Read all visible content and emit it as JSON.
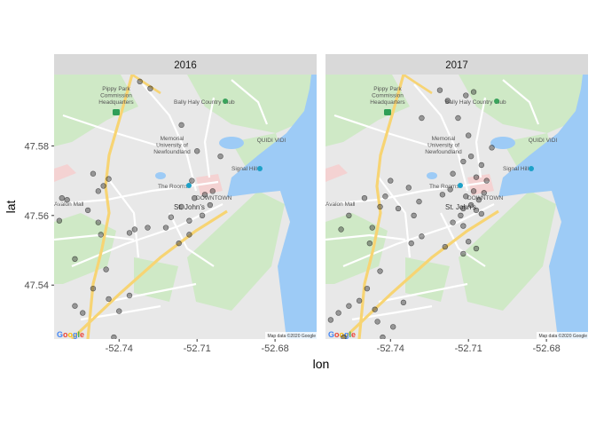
{
  "chart_data": {
    "type": "scatter",
    "xlabel": "lon",
    "ylabel": "lat",
    "xlim": [
      -52.765,
      -52.664
    ],
    "ylim": [
      47.5245,
      47.6005
    ],
    "x_ticks": [
      {
        "value": -52.74,
        "label": "-52.74"
      },
      {
        "value": -52.71,
        "label": "-52.71"
      },
      {
        "value": -52.68,
        "label": "-52.68"
      }
    ],
    "y_ticks": [
      {
        "value": 47.54,
        "label": "47.54"
      },
      {
        "value": 47.56,
        "label": "47.56"
      },
      {
        "value": 47.58,
        "label": "47.58"
      }
    ],
    "point_color": "#333333",
    "point_alpha": 0.45,
    "panels": [
      {
        "facet": "2016",
        "points": [
          [
            -52.732,
            47.5985
          ],
          [
            -52.728,
            47.5965
          ],
          [
            -52.716,
            47.586
          ],
          [
            -52.71,
            47.5785
          ],
          [
            -52.701,
            47.577
          ],
          [
            -52.712,
            47.57
          ],
          [
            -52.716,
            47.5625
          ],
          [
            -52.711,
            47.565
          ],
          [
            -52.707,
            47.566
          ],
          [
            -52.704,
            47.567
          ],
          [
            -52.705,
            47.563
          ],
          [
            -52.708,
            47.56
          ],
          [
            -52.713,
            47.5585
          ],
          [
            -52.72,
            47.5595
          ],
          [
            -52.722,
            47.5565
          ],
          [
            -52.717,
            47.552
          ],
          [
            -52.713,
            47.5545
          ],
          [
            -52.729,
            47.5565
          ],
          [
            -52.734,
            47.556
          ],
          [
            -52.748,
            47.567
          ],
          [
            -52.75,
            47.572
          ],
          [
            -52.744,
            47.5705
          ],
          [
            -52.746,
            47.5685
          ],
          [
            -52.762,
            47.565
          ],
          [
            -52.76,
            47.5645
          ],
          [
            -52.752,
            47.5615
          ],
          [
            -52.748,
            47.558
          ],
          [
            -52.763,
            47.5585
          ],
          [
            -52.757,
            47.5475
          ],
          [
            -52.747,
            47.5545
          ],
          [
            -52.745,
            47.5445
          ],
          [
            -52.744,
            47.536
          ],
          [
            -52.74,
            47.5325
          ],
          [
            -52.736,
            47.537
          ],
          [
            -52.75,
            47.539
          ],
          [
            -52.754,
            47.532
          ],
          [
            -52.757,
            47.534
          ],
          [
            -52.742,
            47.525
          ],
          [
            -52.736,
            47.555
          ]
        ]
      },
      {
        "facet": "2017",
        "points": [
          [
            -52.721,
            47.596
          ],
          [
            -52.718,
            47.593
          ],
          [
            -52.711,
            47.5945
          ],
          [
            -52.708,
            47.5955
          ],
          [
            -52.714,
            47.588
          ],
          [
            -52.71,
            47.583
          ],
          [
            -52.728,
            47.588
          ],
          [
            -52.701,
            47.5795
          ],
          [
            -52.709,
            47.577
          ],
          [
            -52.705,
            47.5745
          ],
          [
            -52.712,
            47.5755
          ],
          [
            -52.716,
            47.572
          ],
          [
            -52.707,
            47.571
          ],
          [
            -52.703,
            47.57
          ],
          [
            -52.704,
            47.5665
          ],
          [
            -52.708,
            47.567
          ],
          [
            -52.711,
            47.5655
          ],
          [
            -52.706,
            47.5645
          ],
          [
            -52.709,
            47.563
          ],
          [
            -52.712,
            47.562
          ],
          [
            -52.707,
            47.5615
          ],
          [
            -52.705,
            47.5605
          ],
          [
            -52.713,
            47.56
          ],
          [
            -52.716,
            47.558
          ],
          [
            -52.712,
            47.557
          ],
          [
            -52.717,
            47.5675
          ],
          [
            -52.72,
            47.566
          ],
          [
            -52.71,
            47.5525
          ],
          [
            -52.707,
            47.5505
          ],
          [
            -52.712,
            47.549
          ],
          [
            -52.729,
            47.564
          ],
          [
            -52.733,
            47.568
          ],
          [
            -52.74,
            47.57
          ],
          [
            -52.742,
            47.5655
          ],
          [
            -52.737,
            47.562
          ],
          [
            -52.731,
            47.56
          ],
          [
            -52.75,
            47.565
          ],
          [
            -52.744,
            47.5625
          ],
          [
            -52.756,
            47.56
          ],
          [
            -52.759,
            47.556
          ],
          [
            -52.747,
            47.5565
          ],
          [
            -52.748,
            47.552
          ],
          [
            -52.728,
            47.554
          ],
          [
            -52.732,
            47.552
          ],
          [
            -52.719,
            47.551
          ],
          [
            -52.744,
            47.544
          ],
          [
            -52.749,
            47.539
          ],
          [
            -52.752,
            47.5355
          ],
          [
            -52.756,
            47.534
          ],
          [
            -52.76,
            47.532
          ],
          [
            -52.763,
            47.53
          ],
          [
            -52.746,
            47.533
          ],
          [
            -52.745,
            47.5295
          ],
          [
            -52.739,
            47.528
          ],
          [
            -52.743,
            47.525
          ],
          [
            -52.735,
            47.535
          ],
          [
            -52.758,
            47.525
          ]
        ]
      }
    ],
    "basemap_labels": {
      "pippy_park": "Pippy Park\nCommission\nHeadquarters",
      "bally_haly": "Bally Haly Country Club",
      "memorial": "Memorial\nUniversity of\nNewfoundland",
      "quidi_vidi": "QUIDI VIDI",
      "signal_hill": "Signal Hill",
      "the_rooms": "The Rooms",
      "downtown": "DOWNTOWN",
      "st_johns": "St. John's",
      "avalon_mall": "Avalon Mall",
      "attribution": "Map data ©2020 Google",
      "google": "Google"
    }
  }
}
